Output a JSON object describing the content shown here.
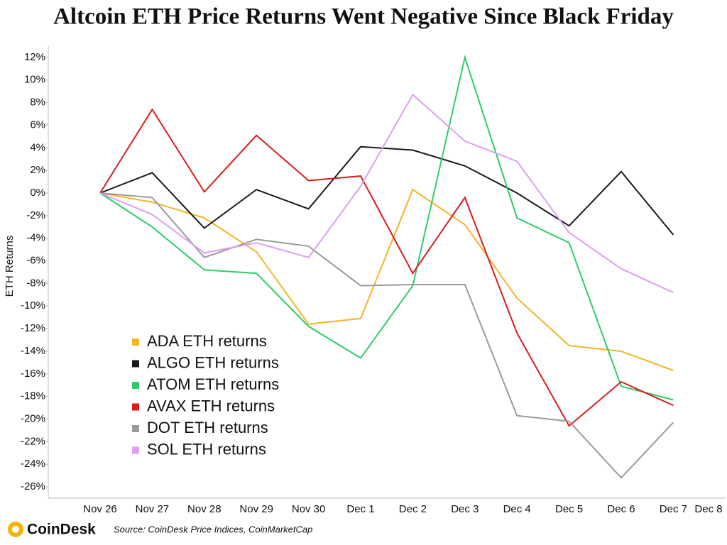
{
  "chart_data": {
    "type": "line",
    "title": "Altcoin ETH Price Returns Went Negative Since Black Friday",
    "y_label": "ETH Returns",
    "source": "Source: CoinDesk Price Indices, CoinMarketCap",
    "brand": "CoinDesk",
    "categories": [
      "Nov 26",
      "Nov 27",
      "Nov 28",
      "Nov 29",
      "Nov 30",
      "Dec 1",
      "Dec 2",
      "Dec 3",
      "Dec 4",
      "Dec 5",
      "Dec 6",
      "Dec 7",
      "Dec 8"
    ],
    "series": [
      {
        "name": "ADA ETH returns",
        "color": "#f2b526",
        "values": [
          0,
          -0.8,
          -2.2,
          -5.2,
          -11.6,
          -11.1,
          0.3,
          -2.8,
          -9.3,
          -13.5,
          -14.0,
          -15.7,
          null
        ]
      },
      {
        "name": "ALGO ETH returns",
        "color": "#1a1a1a",
        "values": [
          0,
          1.8,
          -3.1,
          0.3,
          -1.4,
          4.1,
          3.8,
          2.4,
          0,
          -2.9,
          1.9,
          -3.7,
          null
        ]
      },
      {
        "name": "ATOM ETH returns",
        "color": "#2dcc6a",
        "values": [
          0,
          -3.0,
          -6.8,
          -7.1,
          -11.8,
          -14.6,
          -8.2,
          12.0,
          -2.2,
          -4.4,
          -17.1,
          -18.3,
          null
        ]
      },
      {
        "name": "AVAX ETH returns",
        "color": "#d81c1c",
        "values": [
          0,
          7.4,
          0.1,
          5.1,
          1.1,
          1.5,
          -7.1,
          -0.4,
          -12.4,
          -20.6,
          -16.7,
          -18.8,
          null
        ]
      },
      {
        "name": "DOT ETH returns",
        "color": "#9a9a9a",
        "values": [
          0,
          -0.4,
          -5.7,
          -4.1,
          -4.7,
          -8.2,
          -8.1,
          -8.1,
          -19.7,
          -20.2,
          -25.2,
          -20.3,
          null
        ]
      },
      {
        "name": "SOL ETH returns",
        "color": "#dd9ff0",
        "values": [
          0,
          -1.9,
          -5.3,
          -4.4,
          -5.7,
          0.6,
          8.7,
          4.6,
          2.8,
          -3.5,
          -6.7,
          -8.8,
          null
        ]
      }
    ],
    "ylim": [
      -27,
      13
    ],
    "yticks": [
      {
        "value": 12,
        "label": "12%"
      },
      {
        "value": 10,
        "label": "10%"
      },
      {
        "value": 8,
        "label": "8%"
      },
      {
        "value": 6,
        "label": "6%"
      },
      {
        "value": 4,
        "label": "4%"
      },
      {
        "value": 2,
        "label": "2%"
      },
      {
        "value": 0,
        "label": "0%"
      },
      {
        "value": -2,
        "label": "-2%"
      },
      {
        "value": -4,
        "label": "-4%"
      },
      {
        "value": -6,
        "label": "-6%"
      },
      {
        "value": -8,
        "label": "-8%"
      },
      {
        "value": -10,
        "label": "-10%"
      },
      {
        "value": -12,
        "label": "-12%"
      },
      {
        "value": -14,
        "label": "-14%"
      },
      {
        "value": -16,
        "label": "-16%"
      },
      {
        "value": -18,
        "label": "-18%"
      },
      {
        "value": -20,
        "label": "-20%"
      },
      {
        "value": -22,
        "label": "-22%"
      },
      {
        "value": -24,
        "label": "-24%"
      },
      {
        "value": -26,
        "label": "-26%"
      }
    ],
    "grid": false,
    "legend": "lower-left"
  }
}
